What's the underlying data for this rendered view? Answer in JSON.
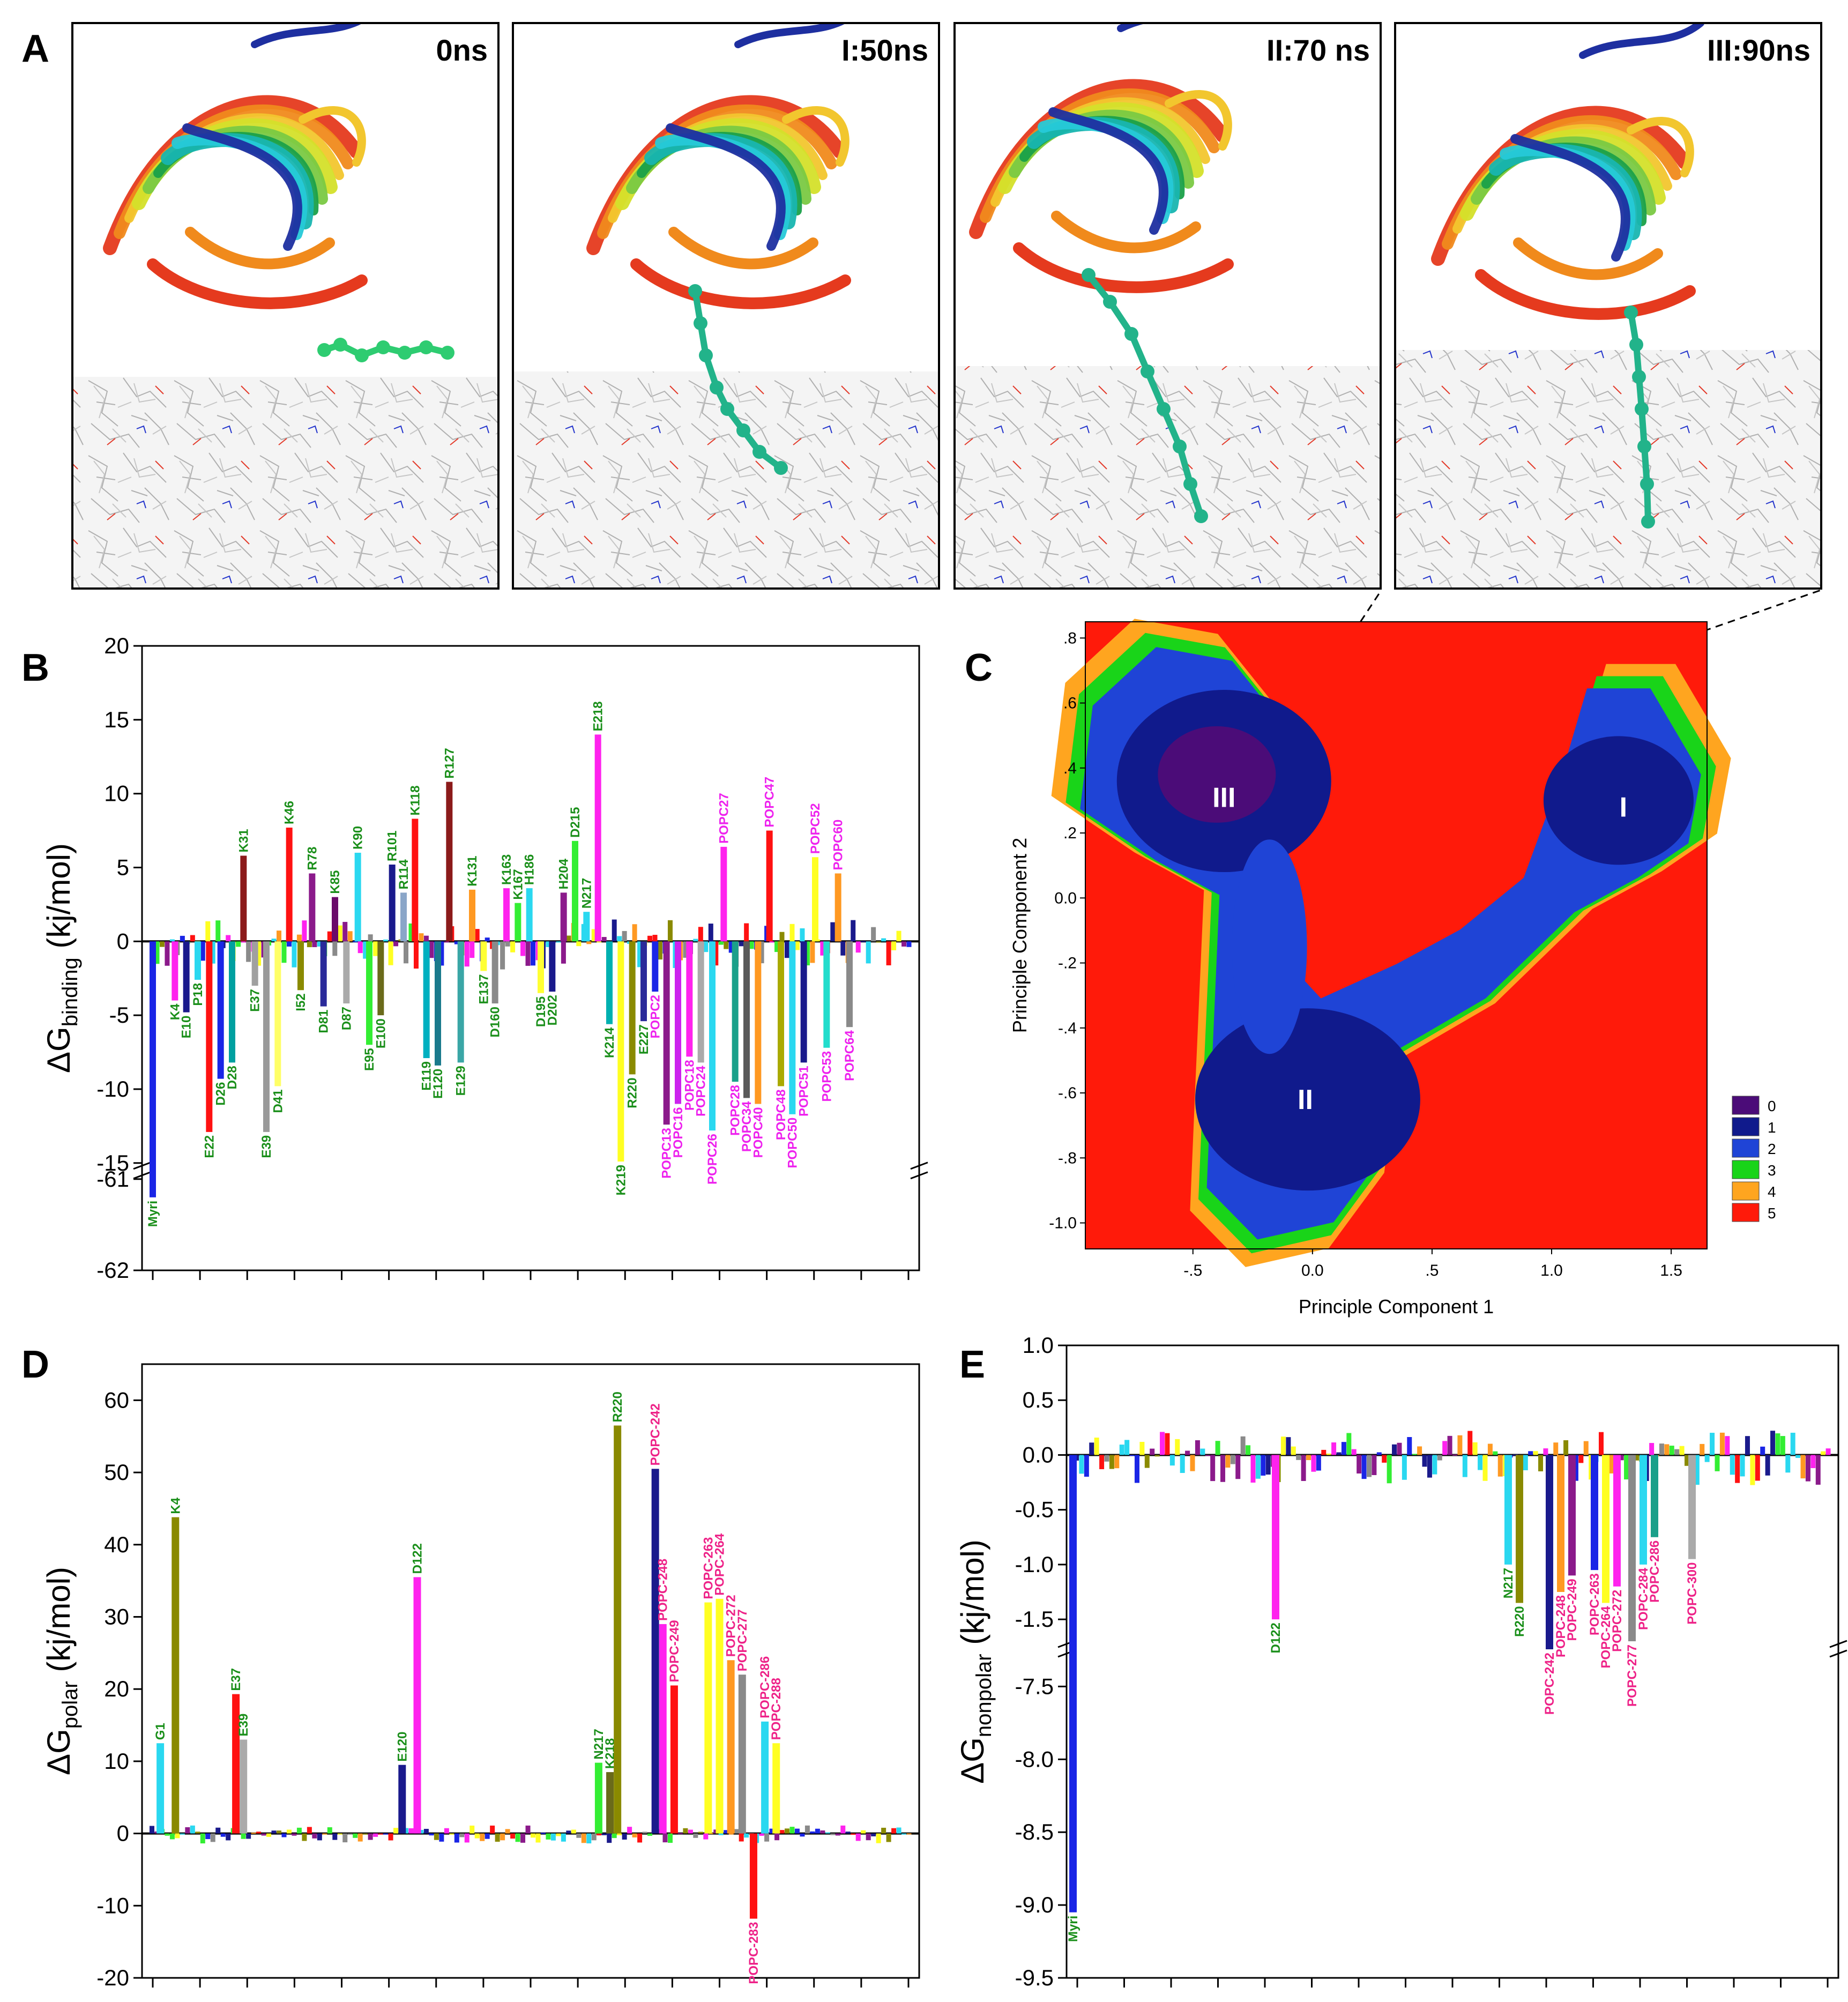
{
  "panel_letters": [
    "A",
    "B",
    "C",
    "D",
    "E"
  ],
  "snapshots": [
    {
      "label": "0ns"
    },
    {
      "label": "I:50ns"
    },
    {
      "label": "II:70 ns"
    },
    {
      "label": "III:90ns"
    }
  ],
  "colors": {
    "membrane_bg": "#f4f4f4",
    "lipid_gray": "#b5b5b5",
    "lipid_red": "#e33a2a",
    "lipid_blue": "#2233cc",
    "myristoyl": "#2ecc71",
    "myristoyl_deep": "#22b38a",
    "strands": [
      "#e53a1e",
      "#f08a1c",
      "#f2c62e",
      "#d4e02a",
      "#7ac943",
      "#1aa049",
      "#18b5b0",
      "#26c9d8",
      "#1e2fa0"
    ]
  },
  "chart_data": [
    {
      "id": "B",
      "type": "bar",
      "title": "B",
      "ylabel": "ΔG",
      "ylabel_sub": "binding",
      "ylabel_unit": " (kj/mol)",
      "ylim": [
        -62,
        20
      ],
      "axis_break": [
        -15,
        -61
      ],
      "yticks": [
        "20",
        "15",
        "10",
        "5",
        "0",
        "-5",
        "-10",
        "-15",
        "-61",
        "-62"
      ],
      "bars": [
        {
          "label": "Myri",
          "value": -61.2,
          "color": "#1a25e6"
        },
        {
          "label": "K4",
          "value": -4.0,
          "color": "#ff22ee"
        },
        {
          "label": "E10",
          "value": -4.8,
          "color": "#1a1a8c"
        },
        {
          "label": "P18",
          "value": -2.6,
          "color": "#2ad8f0"
        },
        {
          "label": "E22",
          "value": -12.9,
          "color": "#ff1111"
        },
        {
          "label": "D26",
          "value": -9.3,
          "color": "#1a25e6"
        },
        {
          "label": "D28",
          "value": -8.2,
          "color": "#00a0a0"
        },
        {
          "label": "K31",
          "value": 5.8,
          "color": "#8b1a1a"
        },
        {
          "label": "E37",
          "value": -3.0,
          "color": "#a0a0a0"
        },
        {
          "label": "E39",
          "value": -12.9,
          "color": "#9a9a9a"
        },
        {
          "label": "D41",
          "value": -9.8,
          "color": "#ffff66"
        },
        {
          "label": "K46",
          "value": 7.7,
          "color": "#ff1111"
        },
        {
          "label": "I52",
          "value": -3.3,
          "color": "#8a8a00"
        },
        {
          "label": "R78",
          "value": 4.6,
          "color": "#8b1a8b"
        },
        {
          "label": "D81",
          "value": -4.4,
          "color": "#2a2a9a"
        },
        {
          "label": "K85",
          "value": 3.0,
          "color": "#6a0a6a"
        },
        {
          "label": "D87",
          "value": -4.2,
          "color": "#aaaaaa"
        },
        {
          "label": "K90",
          "value": 6.0,
          "color": "#2ad8f0"
        },
        {
          "label": "E95",
          "value": -7.0,
          "color": "#33ee33"
        },
        {
          "label": "E100",
          "value": -5.0,
          "color": "#6a6a1a"
        },
        {
          "label": "R101",
          "value": 5.2,
          "color": "#1a1a8c"
        },
        {
          "label": "R114",
          "value": 3.3,
          "color": "#8aa6c8"
        },
        {
          "label": "K118",
          "value": 8.3,
          "color": "#ff1111"
        },
        {
          "label": "E119",
          "value": -7.9,
          "color": "#00b0c0"
        },
        {
          "label": "E120",
          "value": -8.4,
          "color": "#1a7a8c"
        },
        {
          "label": "R127",
          "value": 10.8,
          "color": "#8b1a1a"
        },
        {
          "label": "E129",
          "value": -8.2,
          "color": "#3aa6a6"
        },
        {
          "label": "K131",
          "value": 3.5,
          "color": "#ff9922"
        },
        {
          "label": "E137",
          "value": -2.0,
          "color": "#ffff33"
        },
        {
          "label": "D160",
          "value": -4.2,
          "color": "#8a8a8a"
        },
        {
          "label": "K163",
          "value": 3.6,
          "color": "#ff22ee"
        },
        {
          "label": "K167",
          "value": 2.6,
          "color": "#33ee33"
        },
        {
          "label": "H186",
          "value": 3.6,
          "color": "#2ad8f0"
        },
        {
          "label": "D195",
          "value": -3.5,
          "color": "#ffff33"
        },
        {
          "label": "D202",
          "value": -3.4,
          "color": "#1a1a8c"
        },
        {
          "label": "H204",
          "value": 3.3,
          "color": "#8b1a8b"
        },
        {
          "label": "D215",
          "value": 6.8,
          "color": "#33ee33"
        },
        {
          "label": "N217",
          "value": 2.0,
          "color": "#2ad8f0"
        },
        {
          "label": "E218",
          "value": 14.0,
          "color": "#ff22ee"
        },
        {
          "label": "K214",
          "value": -5.6,
          "color": "#00b0b0"
        },
        {
          "label": "K219",
          "value": -14.9,
          "color": "#ffff22"
        },
        {
          "label": "R220",
          "value": -9.0,
          "color": "#8a8a00"
        },
        {
          "label": "E227",
          "value": -5.4,
          "color": "#2a2a9a"
        },
        {
          "label": "POPC2",
          "value": -3.4,
          "color": "#1a25e6"
        },
        {
          "label": "POPC13",
          "value": -12.4,
          "color": "#8b1a8b"
        },
        {
          "label": "POPC16",
          "value": -11.0,
          "color": "#cc22ee"
        },
        {
          "label": "POPC18",
          "value": -7.8,
          "color": "#ff22ee"
        },
        {
          "label": "POPC24",
          "value": -8.2,
          "color": "#aaaaaa"
        },
        {
          "label": "POPC26",
          "value": -12.8,
          "color": "#2ad8f0"
        },
        {
          "label": "POPC27",
          "value": 6.4,
          "color": "#ff22ee"
        },
        {
          "label": "POPC28",
          "value": -9.5,
          "color": "#1aa08a"
        },
        {
          "label": "POPC34",
          "value": -10.6,
          "color": "#5a5a5a"
        },
        {
          "label": "POPC40",
          "value": -11.0,
          "color": "#ff9922"
        },
        {
          "label": "POPC47",
          "value": 7.5,
          "color": "#ff1111"
        },
        {
          "label": "POPC48",
          "value": -9.8,
          "color": "#aaaa00"
        },
        {
          "label": "POPC50",
          "value": -11.7,
          "color": "#2ad8f0"
        },
        {
          "label": "POPC51",
          "value": -8.2,
          "color": "#1a1a8c"
        },
        {
          "label": "POPC52",
          "value": 5.7,
          "color": "#ffff22"
        },
        {
          "label": "POPC53",
          "value": -7.2,
          "color": "#22ddcc"
        },
        {
          "label": "POPC60",
          "value": 4.6,
          "color": "#ff9922"
        },
        {
          "label": "POPC64",
          "value": -5.8,
          "color": "#8a8a8a"
        }
      ]
    },
    {
      "id": "C",
      "type": "heatmap",
      "title": "C",
      "xlabel": "Principle Component 1",
      "ylabel": "Principle Component 2",
      "xlim": [
        -0.95,
        1.65
      ],
      "ylim": [
        -1.08,
        0.85
      ],
      "xticks": [
        "-.5",
        "0.0",
        ".5",
        "1.0",
        "1.5"
      ],
      "yticks": [
        ".8",
        ".6",
        ".4",
        ".2",
        "0.0",
        "-.2",
        "-.4",
        "-.6",
        "-.8",
        "-1.0"
      ],
      "regions": [
        {
          "label": "I",
          "x": 1.3,
          "y": 0.28
        },
        {
          "label": "II",
          "x": -0.03,
          "y": -0.62
        },
        {
          "label": "III",
          "x": -0.37,
          "y": 0.31
        }
      ],
      "levels": [
        {
          "label": "0",
          "color": "#4b0c78"
        },
        {
          "label": "1",
          "color": "#101a8c"
        },
        {
          "label": "2",
          "color": "#1f44d6"
        },
        {
          "label": "3",
          "color": "#19d419"
        },
        {
          "label": "4",
          "color": "#ffa51f"
        },
        {
          "label": "5",
          "color": "#ff1a0a"
        }
      ]
    },
    {
      "id": "D",
      "type": "bar",
      "title": "D",
      "ylabel": "ΔG",
      "ylabel_sub": "polar",
      "ylabel_unit": " (kj/mol)",
      "ylim": [
        -20,
        65
      ],
      "yticks": [
        "60",
        "50",
        "40",
        "30",
        "20",
        "10",
        "0",
        "-10",
        "-20"
      ],
      "bars": [
        {
          "label": "G1",
          "value": 12.5,
          "color": "#2ad8f0"
        },
        {
          "label": "K4",
          "value": 43.8,
          "color": "#8a8a00"
        },
        {
          "label": "E37",
          "value": 19.3,
          "color": "#ff1111"
        },
        {
          "label": "E39",
          "value": 13.0,
          "color": "#aaaaaa"
        },
        {
          "label": "E120",
          "value": 9.5,
          "color": "#1a1a8c"
        },
        {
          "label": "D122",
          "value": 35.5,
          "color": "#ff22ee"
        },
        {
          "label": "N217",
          "value": 9.8,
          "color": "#33ee33"
        },
        {
          "label": "K218",
          "value": 8.5,
          "color": "#6a6a1a"
        },
        {
          "label": "R220",
          "value": 56.5,
          "color": "#8a8a00"
        },
        {
          "label": "POPC-242",
          "value": 50.5,
          "color": "#1a1a8c"
        },
        {
          "label": "POPC-248",
          "value": 29.0,
          "color": "#ff22ee"
        },
        {
          "label": "POPC-249",
          "value": 20.5,
          "color": "#ff1111"
        },
        {
          "label": "POPC-263",
          "value": 32.0,
          "color": "#ffff22"
        },
        {
          "label": "POPC-264",
          "value": 32.5,
          "color": "#ffff22"
        },
        {
          "label": "POPC-272",
          "value": 24.0,
          "color": "#ff9922"
        },
        {
          "label": "POPC-277",
          "value": 22.0,
          "color": "#8a8a8a"
        },
        {
          "label": "POPC-283",
          "value": -11.8,
          "color": "#ff1111"
        },
        {
          "label": "POPC-286",
          "value": 15.5,
          "color": "#2ad8f0"
        },
        {
          "label": "POPC-288",
          "value": 12.5,
          "color": "#ffff22"
        }
      ]
    },
    {
      "id": "E",
      "type": "bar",
      "title": "E",
      "ylabel": "ΔG",
      "ylabel_sub": "nonpolar",
      "ylabel_unit": " (kj/mol)",
      "ylim": [
        -9.5,
        1.0
      ],
      "axis_break": [
        -1.7,
        -7.3
      ],
      "yticks": [
        "1.0",
        "0.5",
        "0.0",
        "-0.5",
        "-1.0",
        "-1.5",
        "-7.5",
        "-8.0",
        "-8.5",
        "-9.0",
        "-9.5"
      ],
      "bars": [
        {
          "label": "Myri",
          "value": -9.05,
          "color": "#1a25e6"
        },
        {
          "label": "D122",
          "value": -1.5,
          "color": "#ff22ee"
        },
        {
          "label": "N217",
          "value": -1.0,
          "color": "#2ad8f0"
        },
        {
          "label": "R220",
          "value": -1.35,
          "color": "#8a8a00"
        },
        {
          "label": "POPC-242",
          "value": -1.72,
          "color": "#1a1a8c"
        },
        {
          "label": "POPC-248",
          "value": -1.25,
          "color": "#ff9922"
        },
        {
          "label": "POPC-249",
          "value": -1.1,
          "color": "#8b1a8b"
        },
        {
          "label": "POPC-263",
          "value": -1.05,
          "color": "#1a25e6"
        },
        {
          "label": "POPC-264",
          "value": -1.35,
          "color": "#ffff22"
        },
        {
          "label": "POPC-272",
          "value": -1.2,
          "color": "#ff22ee"
        },
        {
          "label": "POPC-277",
          "value": -1.7,
          "color": "#8a8a8a"
        },
        {
          "label": "POPC-284",
          "value": -1.0,
          "color": "#2ad8f0"
        },
        {
          "label": "POPC-286",
          "value": -0.75,
          "color": "#1aa08a"
        },
        {
          "label": "POPC-300",
          "value": -0.95,
          "color": "#aaaaaa"
        }
      ]
    }
  ]
}
